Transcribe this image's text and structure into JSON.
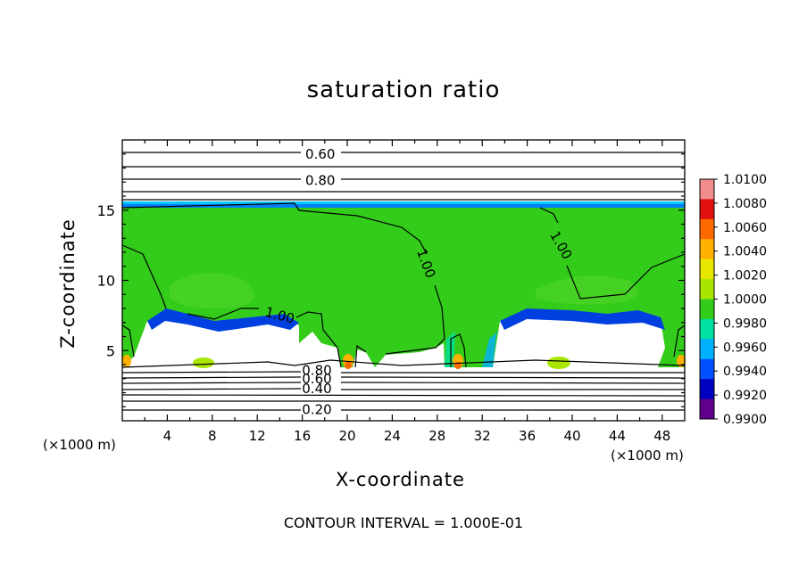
{
  "chart_data": {
    "type": "heatmap",
    "title": "saturation ratio",
    "xlabel": "X-coordinate",
    "ylabel": "Z-coordinate",
    "x_multiplier": "(×1000 m)",
    "x_ticks": [
      "4",
      "8",
      "12",
      "16",
      "20",
      "24",
      "28",
      "32",
      "36",
      "40",
      "44",
      "48"
    ],
    "x_tick_values": [
      4,
      8,
      12,
      16,
      20,
      24,
      28,
      32,
      36,
      40,
      44,
      48
    ],
    "y_ticks": [
      "5",
      "10",
      "15"
    ],
    "y_tick_values": [
      5,
      10,
      15
    ],
    "xlim": [
      0,
      50
    ],
    "ylim": [
      0,
      20
    ],
    "contour_labels": [
      {
        "text": "0.60",
        "x": 17.6,
        "z": 19.0
      },
      {
        "text": "0.80",
        "x": 17.6,
        "z": 17.1
      },
      {
        "text": "1.00",
        "x": 27.0,
        "z": 11.2
      },
      {
        "text": "1.00",
        "x": 39.0,
        "z": 12.5
      },
      {
        "text": "1.00",
        "x": 14.0,
        "z": 7.5
      },
      {
        "text": "0.80",
        "x": 17.3,
        "z": 3.6
      },
      {
        "text": "0.60",
        "x": 17.3,
        "z": 3.0
      },
      {
        "text": "0.40",
        "x": 17.3,
        "z": 2.3
      },
      {
        "text": "0.20",
        "x": 17.3,
        "z": 0.8
      }
    ],
    "colorbar": {
      "labels": [
        "1.0100",
        "1.0080",
        "1.0060",
        "1.0040",
        "1.0020",
        "1.0000",
        "0.9980",
        "0.9960",
        "0.9940",
        "0.9920",
        "0.9900"
      ],
      "colors": [
        "#f08c8c",
        "#e01010",
        "#ff6a00",
        "#ffb000",
        "#e6e600",
        "#a8e600",
        "#33cc1a",
        "#00e0a0",
        "#00b0ff",
        "#0050ff",
        "#0000c0",
        "#60008c"
      ]
    },
    "contour_interval_text": "CONTOUR INTERVAL = 1.000E-01"
  }
}
